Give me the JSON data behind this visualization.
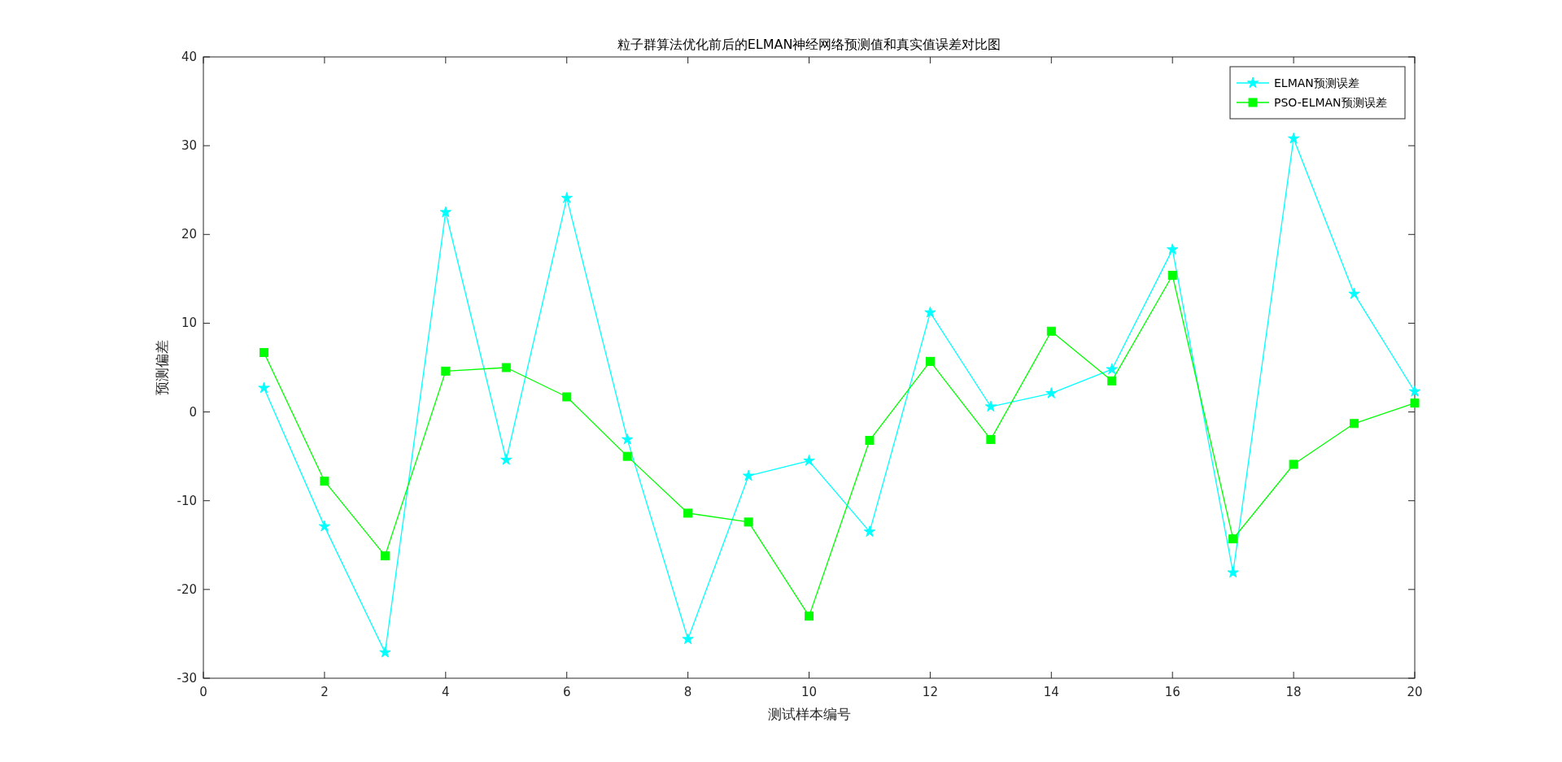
{
  "chart_data": {
    "type": "line",
    "title": "粒子群算法优化前后的ELMAN神经网络预测值和真实值误差对比图",
    "xlabel": "测试样本编号",
    "ylabel": "预测偏差",
    "x": [
      1,
      2,
      3,
      4,
      5,
      6,
      7,
      8,
      9,
      10,
      11,
      12,
      13,
      14,
      15,
      16,
      17,
      18,
      19,
      20
    ],
    "series": [
      {
        "name": "ELMAN预测误差",
        "color": "#00ffff",
        "marker": "star",
        "values": [
          2.7,
          -12.9,
          -27.1,
          22.5,
          -5.4,
          24.1,
          -3.1,
          -25.6,
          -7.2,
          -5.5,
          -13.5,
          11.2,
          0.6,
          2.1,
          4.8,
          18.3,
          -18.1,
          30.8,
          13.3,
          2.3
        ]
      },
      {
        "name": "PSO-ELMAN预测误差",
        "color": "#00ff00",
        "marker": "square",
        "values": [
          6.7,
          -7.8,
          -16.2,
          4.6,
          5.0,
          1.7,
          -5.0,
          -11.4,
          -12.4,
          -23.0,
          -3.2,
          5.7,
          -3.1,
          9.1,
          3.5,
          15.4,
          -14.3,
          -5.9,
          -1.3,
          1.0
        ]
      }
    ],
    "xlim": [
      0,
      20
    ],
    "xticks": [
      0,
      2,
      4,
      6,
      8,
      10,
      12,
      14,
      16,
      18,
      20
    ],
    "ylim": [
      -30,
      40
    ],
    "yticks": [
      -30,
      -20,
      -10,
      0,
      10,
      20,
      30,
      40
    ],
    "grid": false,
    "legend": "top right",
    "line_style": "solid"
  }
}
